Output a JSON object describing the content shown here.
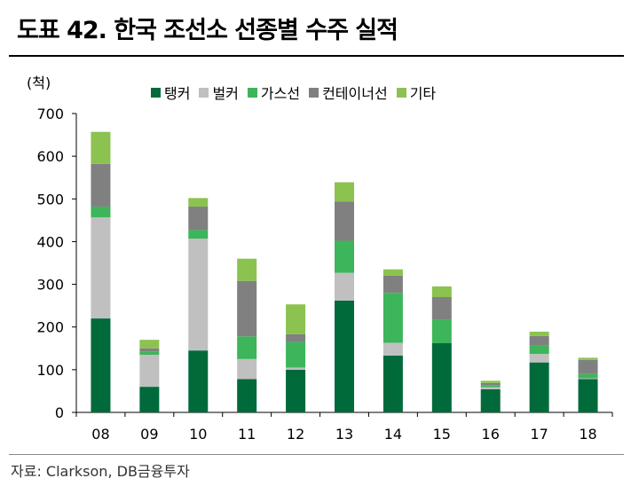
{
  "title": "도표 42. 한국 조선소 선종별 수주 실적",
  "source": "자료: Clarkson, DB금융투자",
  "chart_data": {
    "type": "bar",
    "stacked": true,
    "unit": "(척)",
    "categories": [
      "08",
      "09",
      "10",
      "11",
      "12",
      "13",
      "14",
      "15",
      "16",
      "17",
      "18"
    ],
    "ylim": [
      0,
      700
    ],
    "yticks": [
      0,
      100,
      200,
      300,
      400,
      500,
      600,
      700
    ],
    "grid": false,
    "legend_position": "top",
    "series": [
      {
        "name": "탱커",
        "color": "#006a3a",
        "values": [
          220,
          60,
          145,
          78,
          100,
          262,
          133,
          162,
          54,
          117,
          78
        ]
      },
      {
        "name": "벌커",
        "color": "#c0c0c0",
        "values": [
          237,
          75,
          262,
          47,
          5,
          65,
          30,
          0,
          5,
          20,
          2
        ]
      },
      {
        "name": "가스선",
        "color": "#3db55a",
        "values": [
          25,
          8,
          20,
          53,
          60,
          75,
          117,
          56,
          5,
          20,
          10
        ]
      },
      {
        "name": "컨테이너선",
        "color": "#808080",
        "values": [
          100,
          7,
          55,
          130,
          18,
          92,
          40,
          52,
          5,
          22,
          33
        ]
      },
      {
        "name": "기타",
        "color": "#8cc250",
        "values": [
          75,
          20,
          20,
          52,
          70,
          45,
          15,
          25,
          5,
          10,
          5
        ]
      }
    ]
  }
}
